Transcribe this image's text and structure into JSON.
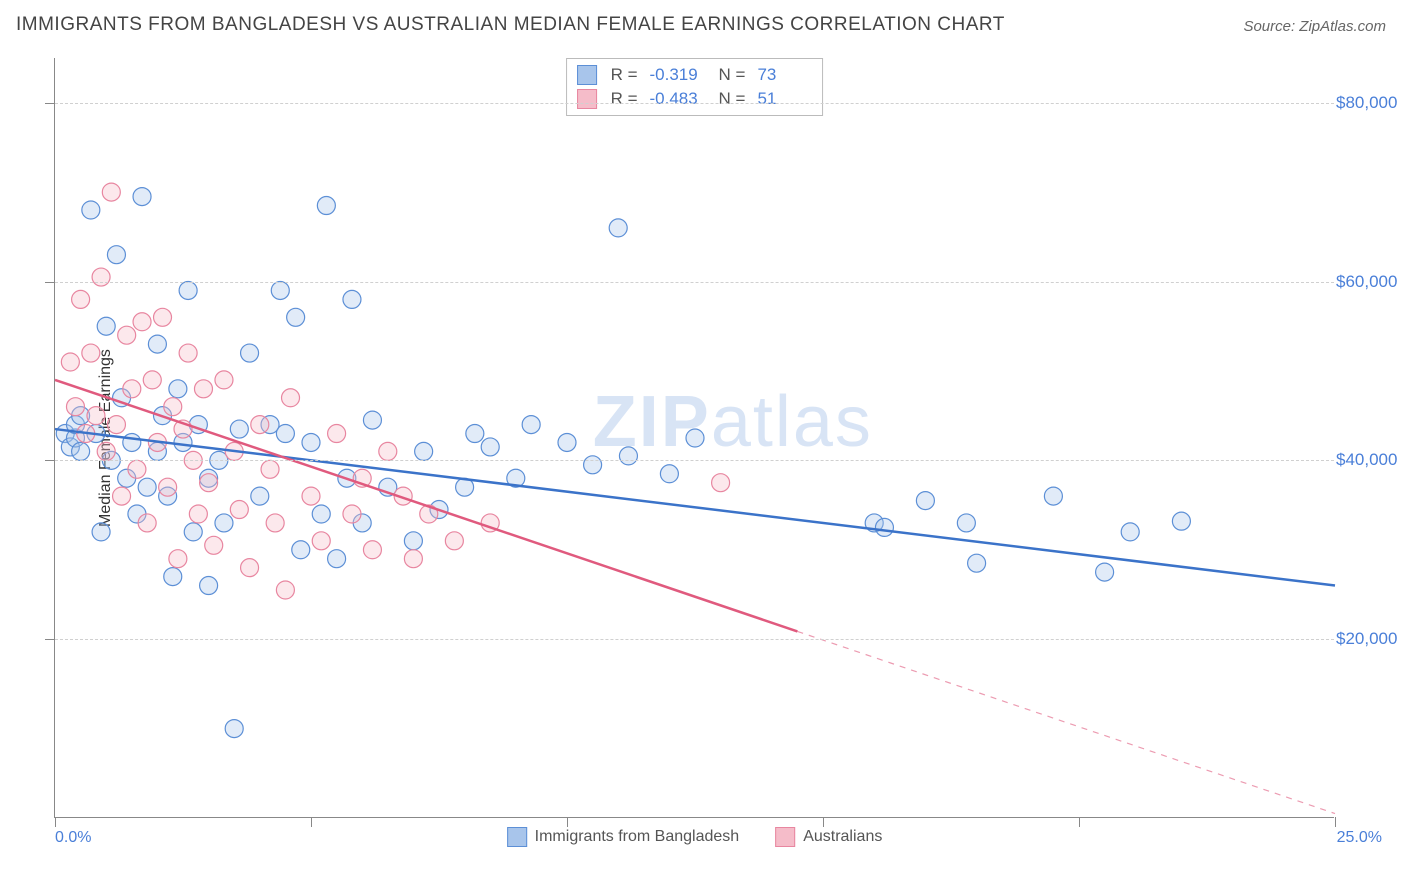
{
  "title": "IMMIGRANTS FROM BANGLADESH VS AUSTRALIAN MEDIAN FEMALE EARNINGS CORRELATION CHART",
  "source": "Source: ZipAtlas.com",
  "watermark_bold": "ZIP",
  "watermark_light": "atlas",
  "chart": {
    "type": "scatter",
    "ylabel": "Median Female Earnings",
    "xlim": [
      0,
      25
    ],
    "ylim": [
      0,
      85000
    ],
    "x_axis_format": "percent",
    "y_axis_format": "dollar",
    "x_min_label": "0.0%",
    "x_max_label": "25.0%",
    "y_tick_labels": [
      {
        "value": 20000,
        "label": "$20,000"
      },
      {
        "value": 40000,
        "label": "$40,000"
      },
      {
        "value": 60000,
        "label": "$60,000"
      },
      {
        "value": 80000,
        "label": "$80,000"
      }
    ],
    "x_tick_positions": [
      0,
      5,
      10,
      15,
      20,
      25
    ],
    "grid_color": "#d0d0d0",
    "axis_color": "#888888",
    "background_color": "#ffffff",
    "marker_radius": 9,
    "marker_fill_opacity": 0.35,
    "marker_stroke_width": 1.2,
    "trend_line_width": 2.5,
    "series": [
      {
        "name": "Immigrants from Bangladesh",
        "color_fill": "#a8c5eb",
        "color_stroke": "#5c8fd6",
        "line_color": "#3b73c9",
        "R": "-0.319",
        "N": "73",
        "trend": {
          "x1": 0,
          "y1": 43500,
          "x2": 25,
          "y2": 26000
        },
        "dash_from_x": 25,
        "points": [
          [
            0.2,
            43000
          ],
          [
            0.3,
            41500
          ],
          [
            0.4,
            42500
          ],
          [
            0.4,
            44000
          ],
          [
            0.5,
            41000
          ],
          [
            0.5,
            45000
          ],
          [
            0.7,
            68000
          ],
          [
            0.8,
            43000
          ],
          [
            0.9,
            32000
          ],
          [
            1.0,
            55000
          ],
          [
            1.1,
            40000
          ],
          [
            1.2,
            63000
          ],
          [
            1.3,
            47000
          ],
          [
            1.4,
            38000
          ],
          [
            1.5,
            42000
          ],
          [
            1.6,
            34000
          ],
          [
            1.7,
            69500
          ],
          [
            1.8,
            37000
          ],
          [
            2.0,
            41000
          ],
          [
            2.0,
            53000
          ],
          [
            2.1,
            45000
          ],
          [
            2.2,
            36000
          ],
          [
            2.3,
            27000
          ],
          [
            2.4,
            48000
          ],
          [
            2.5,
            42000
          ],
          [
            2.6,
            59000
          ],
          [
            2.7,
            32000
          ],
          [
            2.8,
            44000
          ],
          [
            3.0,
            38000
          ],
          [
            3.0,
            26000
          ],
          [
            3.2,
            40000
          ],
          [
            3.3,
            33000
          ],
          [
            3.5,
            10000
          ],
          [
            3.6,
            43500
          ],
          [
            3.8,
            52000
          ],
          [
            4.0,
            36000
          ],
          [
            4.2,
            44000
          ],
          [
            4.4,
            59000
          ],
          [
            4.5,
            43000
          ],
          [
            4.7,
            56000
          ],
          [
            4.8,
            30000
          ],
          [
            5.0,
            42000
          ],
          [
            5.2,
            34000
          ],
          [
            5.3,
            68500
          ],
          [
            5.5,
            29000
          ],
          [
            5.7,
            38000
          ],
          [
            5.8,
            58000
          ],
          [
            6.0,
            33000
          ],
          [
            6.2,
            44500
          ],
          [
            6.5,
            37000
          ],
          [
            7.0,
            31000
          ],
          [
            7.2,
            41000
          ],
          [
            7.5,
            34500
          ],
          [
            8.0,
            37000
          ],
          [
            8.2,
            43000
          ],
          [
            8.5,
            41500
          ],
          [
            9.0,
            38000
          ],
          [
            9.3,
            44000
          ],
          [
            10.0,
            42000
          ],
          [
            10.5,
            39500
          ],
          [
            11.0,
            66000
          ],
          [
            11.2,
            40500
          ],
          [
            12.0,
            38500
          ],
          [
            12.5,
            42500
          ],
          [
            16.0,
            33000
          ],
          [
            16.2,
            32500
          ],
          [
            17.0,
            35500
          ],
          [
            17.8,
            33000
          ],
          [
            18.0,
            28500
          ],
          [
            19.5,
            36000
          ],
          [
            20.5,
            27500
          ],
          [
            21.0,
            32000
          ],
          [
            22.0,
            33200
          ]
        ]
      },
      {
        "name": "Australians",
        "color_fill": "#f5bcc9",
        "color_stroke": "#e886a0",
        "line_color": "#e05a7e",
        "R": "-0.483",
        "N": "51",
        "trend": {
          "x1": 0,
          "y1": 49000,
          "x2": 25,
          "y2": 500
        },
        "dash_from_x": 14.5,
        "points": [
          [
            0.3,
            51000
          ],
          [
            0.4,
            46000
          ],
          [
            0.5,
            58000
          ],
          [
            0.6,
            43000
          ],
          [
            0.7,
            52000
          ],
          [
            0.8,
            45000
          ],
          [
            0.9,
            60500
          ],
          [
            1.0,
            41000
          ],
          [
            1.1,
            70000
          ],
          [
            1.2,
            44000
          ],
          [
            1.3,
            36000
          ],
          [
            1.4,
            54000
          ],
          [
            1.5,
            48000
          ],
          [
            1.6,
            39000
          ],
          [
            1.7,
            55500
          ],
          [
            1.8,
            33000
          ],
          [
            1.9,
            49000
          ],
          [
            2.0,
            42000
          ],
          [
            2.1,
            56000
          ],
          [
            2.2,
            37000
          ],
          [
            2.3,
            46000
          ],
          [
            2.4,
            29000
          ],
          [
            2.5,
            43500
          ],
          [
            2.6,
            52000
          ],
          [
            2.7,
            40000
          ],
          [
            2.8,
            34000
          ],
          [
            2.9,
            48000
          ],
          [
            3.0,
            37500
          ],
          [
            3.1,
            30500
          ],
          [
            3.3,
            49000
          ],
          [
            3.5,
            41000
          ],
          [
            3.6,
            34500
          ],
          [
            3.8,
            28000
          ],
          [
            4.0,
            44000
          ],
          [
            4.2,
            39000
          ],
          [
            4.3,
            33000
          ],
          [
            4.5,
            25500
          ],
          [
            4.6,
            47000
          ],
          [
            5.0,
            36000
          ],
          [
            5.2,
            31000
          ],
          [
            5.5,
            43000
          ],
          [
            5.8,
            34000
          ],
          [
            6.0,
            38000
          ],
          [
            6.2,
            30000
          ],
          [
            6.5,
            41000
          ],
          [
            6.8,
            36000
          ],
          [
            7.0,
            29000
          ],
          [
            7.3,
            34000
          ],
          [
            7.8,
            31000
          ],
          [
            8.5,
            33000
          ],
          [
            13.0,
            37500
          ]
        ]
      }
    ]
  }
}
